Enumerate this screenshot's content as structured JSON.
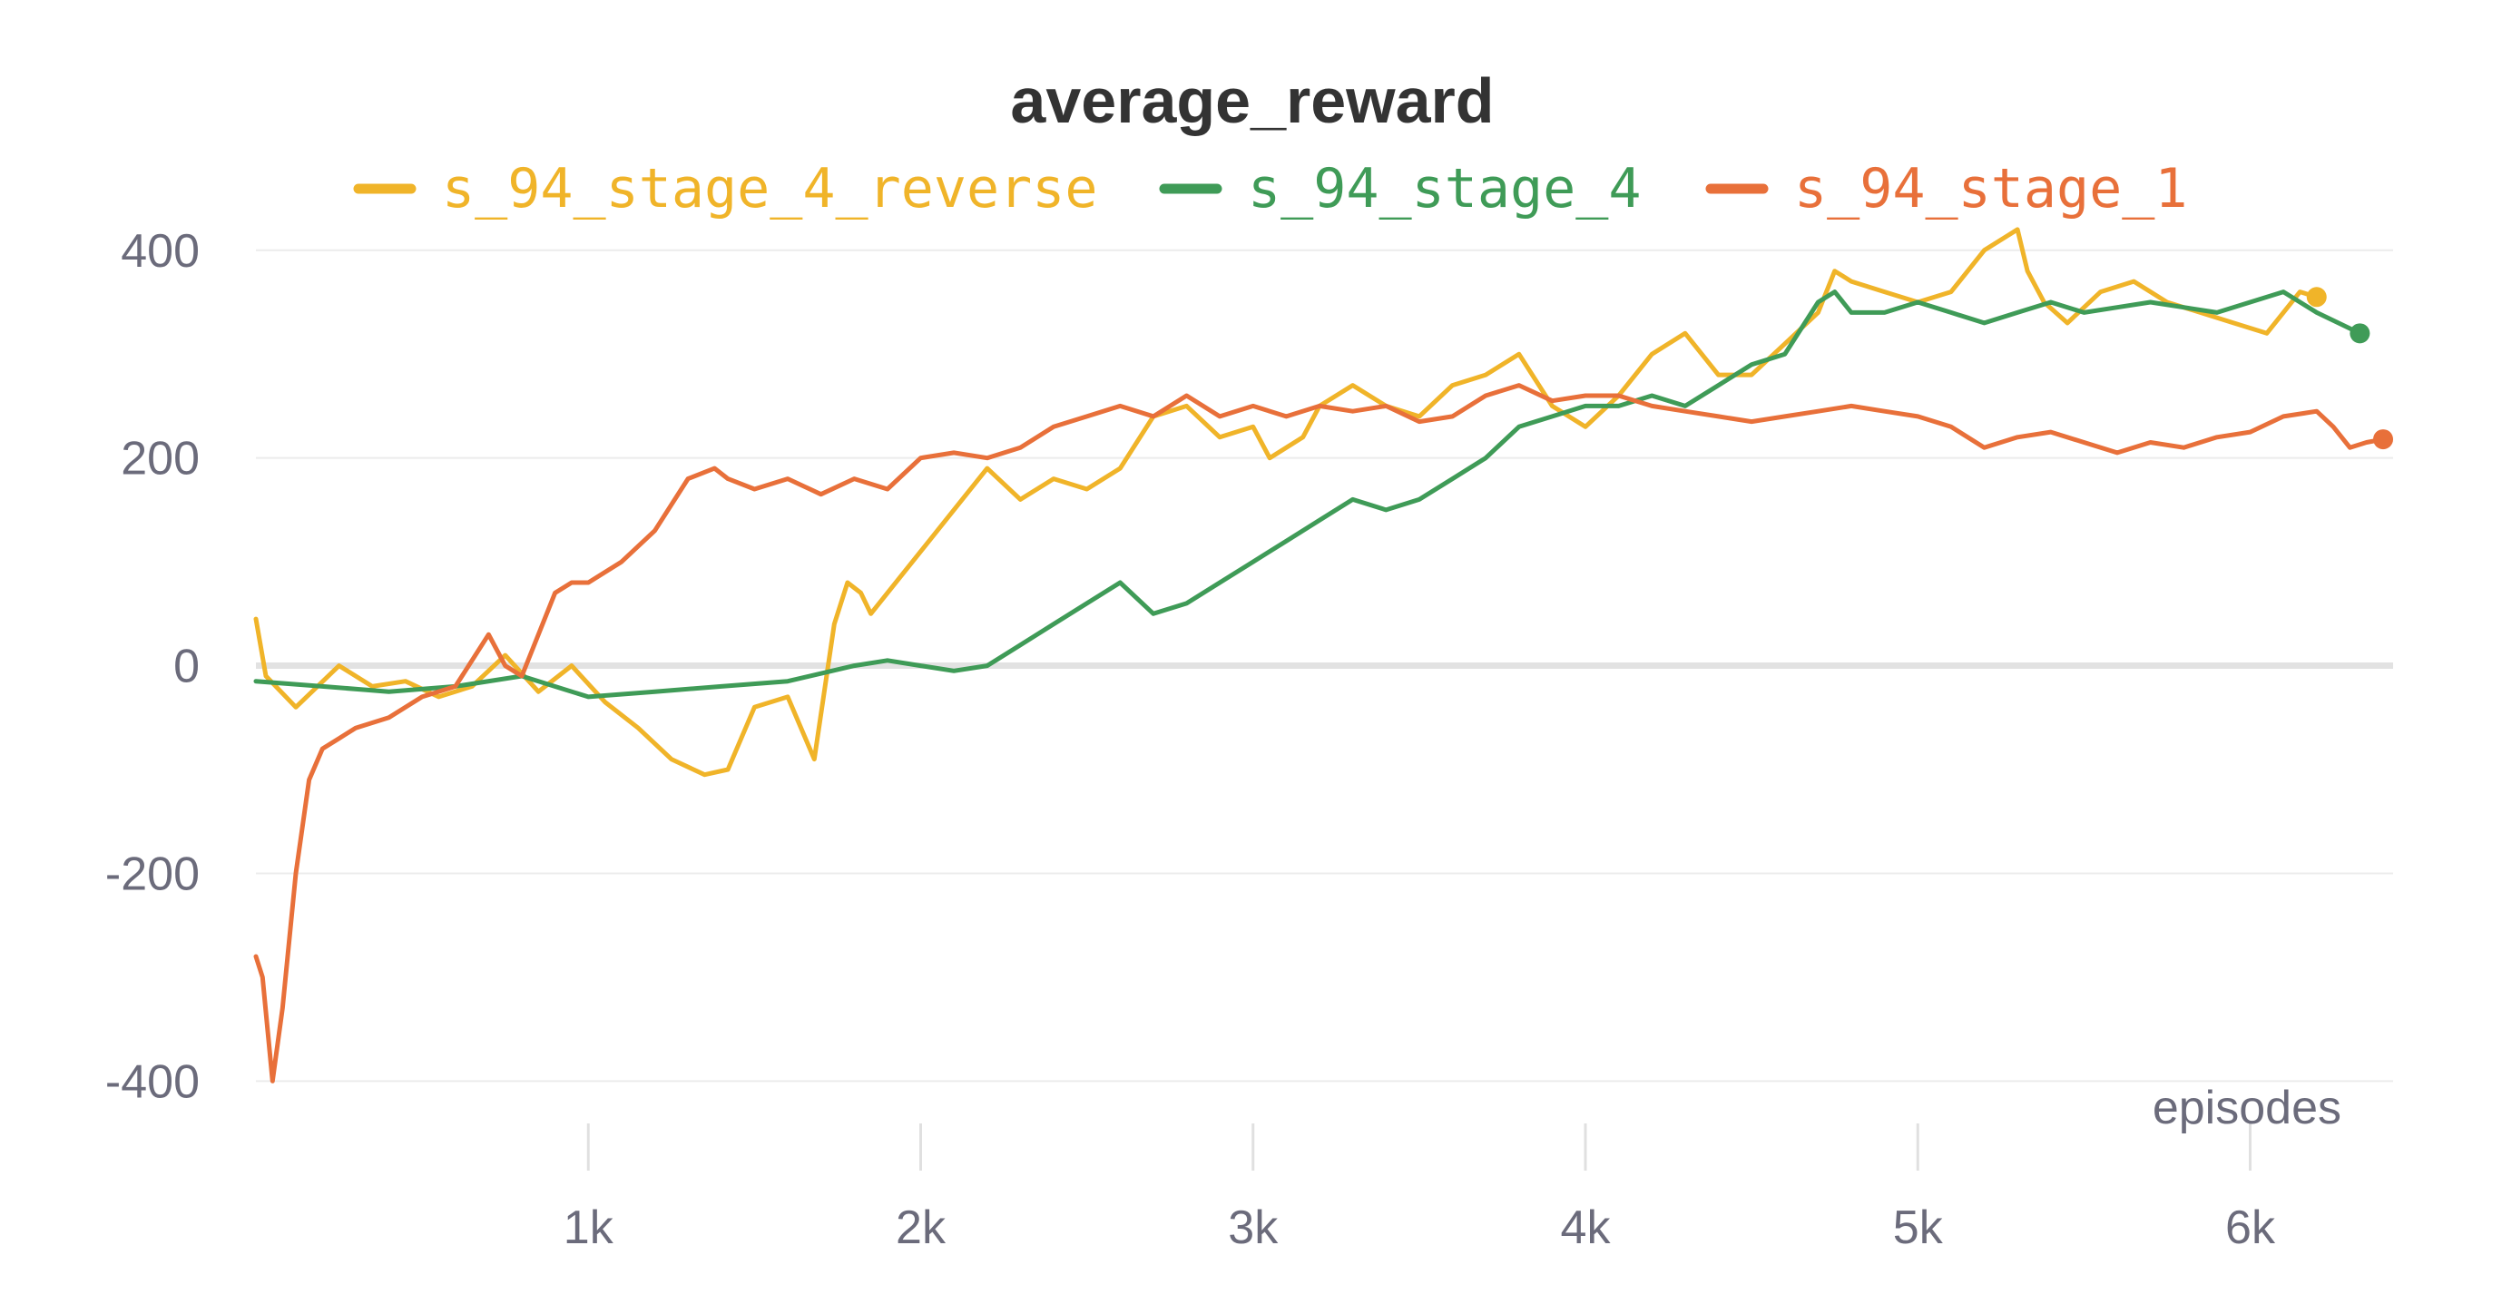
{
  "chart_data": {
    "type": "line",
    "title": "average_reward",
    "xlabel": "episodes",
    "ylabel": "",
    "xlim": [
      0,
      6430
    ],
    "ylim": [
      -460,
      440
    ],
    "x_ticks": [
      1000,
      2000,
      3000,
      4000,
      5000,
      6000
    ],
    "x_tick_labels": [
      "1k",
      "2k",
      "3k",
      "4k",
      "5k",
      "6k"
    ],
    "y_ticks": [
      -400,
      -200,
      0,
      200,
      400
    ],
    "y_tick_labels": [
      "-400",
      "-200",
      "0",
      "200",
      "400"
    ],
    "grid": true,
    "legend_position": "top-center",
    "series": [
      {
        "name": "s_94_stage_4_reverse",
        "color": "#f0b429",
        "x": [
          0,
          30,
          120,
          250,
          350,
          450,
          550,
          650,
          750,
          850,
          950,
          1050,
          1150,
          1250,
          1350,
          1420,
          1500,
          1600,
          1680,
          1740,
          1780,
          1820,
          1850,
          1900,
          2000,
          2100,
          2200,
          2300,
          2400,
          2500,
          2600,
          2700,
          2800,
          2900,
          3000,
          3050,
          3100,
          3150,
          3200,
          3300,
          3400,
          3500,
          3600,
          3700,
          3800,
          3900,
          4000,
          4100,
          4200,
          4300,
          4400,
          4500,
          4600,
          4700,
          4750,
          4800,
          4900,
          5000,
          5100,
          5200,
          5300,
          5330,
          5380,
          5450,
          5550,
          5650,
          5750,
          5850,
          5950,
          6050,
          6150,
          6200
        ],
        "y": [
          45,
          -10,
          -40,
          0,
          -20,
          -15,
          -30,
          -20,
          10,
          -25,
          0,
          -35,
          -60,
          -90,
          -105,
          -100,
          -40,
          -30,
          -90,
          40,
          80,
          70,
          50,
          70,
          110,
          150,
          190,
          160,
          180,
          170,
          190,
          240,
          250,
          220,
          230,
          200,
          210,
          220,
          250,
          270,
          250,
          240,
          270,
          280,
          300,
          250,
          230,
          260,
          300,
          320,
          280,
          280,
          310,
          340,
          380,
          370,
          360,
          350,
          360,
          400,
          420,
          380,
          350,
          330,
          360,
          370,
          350,
          340,
          330,
          320,
          360,
          355
        ]
      },
      {
        "name": "s_94_stage_4",
        "color": "#3f9b57",
        "x": [
          0,
          200,
          400,
          600,
          800,
          1000,
          1200,
          1400,
          1600,
          1800,
          1900,
          2000,
          2100,
          2200,
          2300,
          2400,
          2500,
          2600,
          2700,
          2800,
          2900,
          3000,
          3100,
          3200,
          3300,
          3400,
          3500,
          3600,
          3700,
          3800,
          3900,
          4000,
          4100,
          4200,
          4300,
          4400,
          4500,
          4600,
          4700,
          4750,
          4800,
          4900,
          5000,
          5100,
          5200,
          5300,
          5400,
          5500,
          5600,
          5700,
          5800,
          5900,
          6000,
          6100,
          6200,
          6330
        ],
        "y": [
          -15,
          -20,
          -25,
          -20,
          -10,
          -30,
          -25,
          -20,
          -15,
          0,
          5,
          0,
          -5,
          0,
          20,
          40,
          60,
          80,
          50,
          60,
          80,
          100,
          120,
          140,
          160,
          150,
          160,
          180,
          200,
          230,
          240,
          250,
          250,
          260,
          250,
          270,
          290,
          300,
          350,
          360,
          340,
          340,
          350,
          340,
          330,
          340,
          350,
          340,
          345,
          350,
          345,
          340,
          350,
          360,
          340,
          320
        ]
      },
      {
        "name": "s_94_stage_1",
        "color": "#e8703a",
        "x": [
          0,
          20,
          50,
          80,
          120,
          160,
          200,
          250,
          300,
          400,
          500,
          600,
          700,
          750,
          800,
          900,
          950,
          1000,
          1100,
          1200,
          1300,
          1380,
          1420,
          1500,
          1600,
          1700,
          1800,
          1900,
          2000,
          2100,
          2200,
          2300,
          2400,
          2500,
          2600,
          2700,
          2800,
          2900,
          3000,
          3100,
          3200,
          3300,
          3400,
          3500,
          3600,
          3700,
          3800,
          3900,
          4000,
          4100,
          4200,
          4300,
          4400,
          4500,
          4600,
          4700,
          4800,
          4900,
          5000,
          5100,
          5200,
          5300,
          5400,
          5500,
          5600,
          5700,
          5800,
          5900,
          6000,
          6100,
          6200,
          6250,
          6300,
          6350,
          6400
        ],
        "y": [
          -280,
          -300,
          -400,
          -330,
          -200,
          -110,
          -80,
          -70,
          -60,
          -50,
          -30,
          -20,
          30,
          0,
          -10,
          70,
          80,
          80,
          100,
          130,
          180,
          190,
          180,
          170,
          180,
          165,
          180,
          170,
          200,
          205,
          200,
          210,
          230,
          240,
          250,
          240,
          260,
          240,
          250,
          240,
          250,
          245,
          250,
          235,
          240,
          260,
          270,
          255,
          260,
          260,
          250,
          245,
          240,
          235,
          240,
          245,
          250,
          245,
          240,
          230,
          210,
          220,
          225,
          215,
          205,
          215,
          210,
          220,
          225,
          240,
          245,
          230,
          210,
          215,
          218
        ]
      }
    ]
  }
}
